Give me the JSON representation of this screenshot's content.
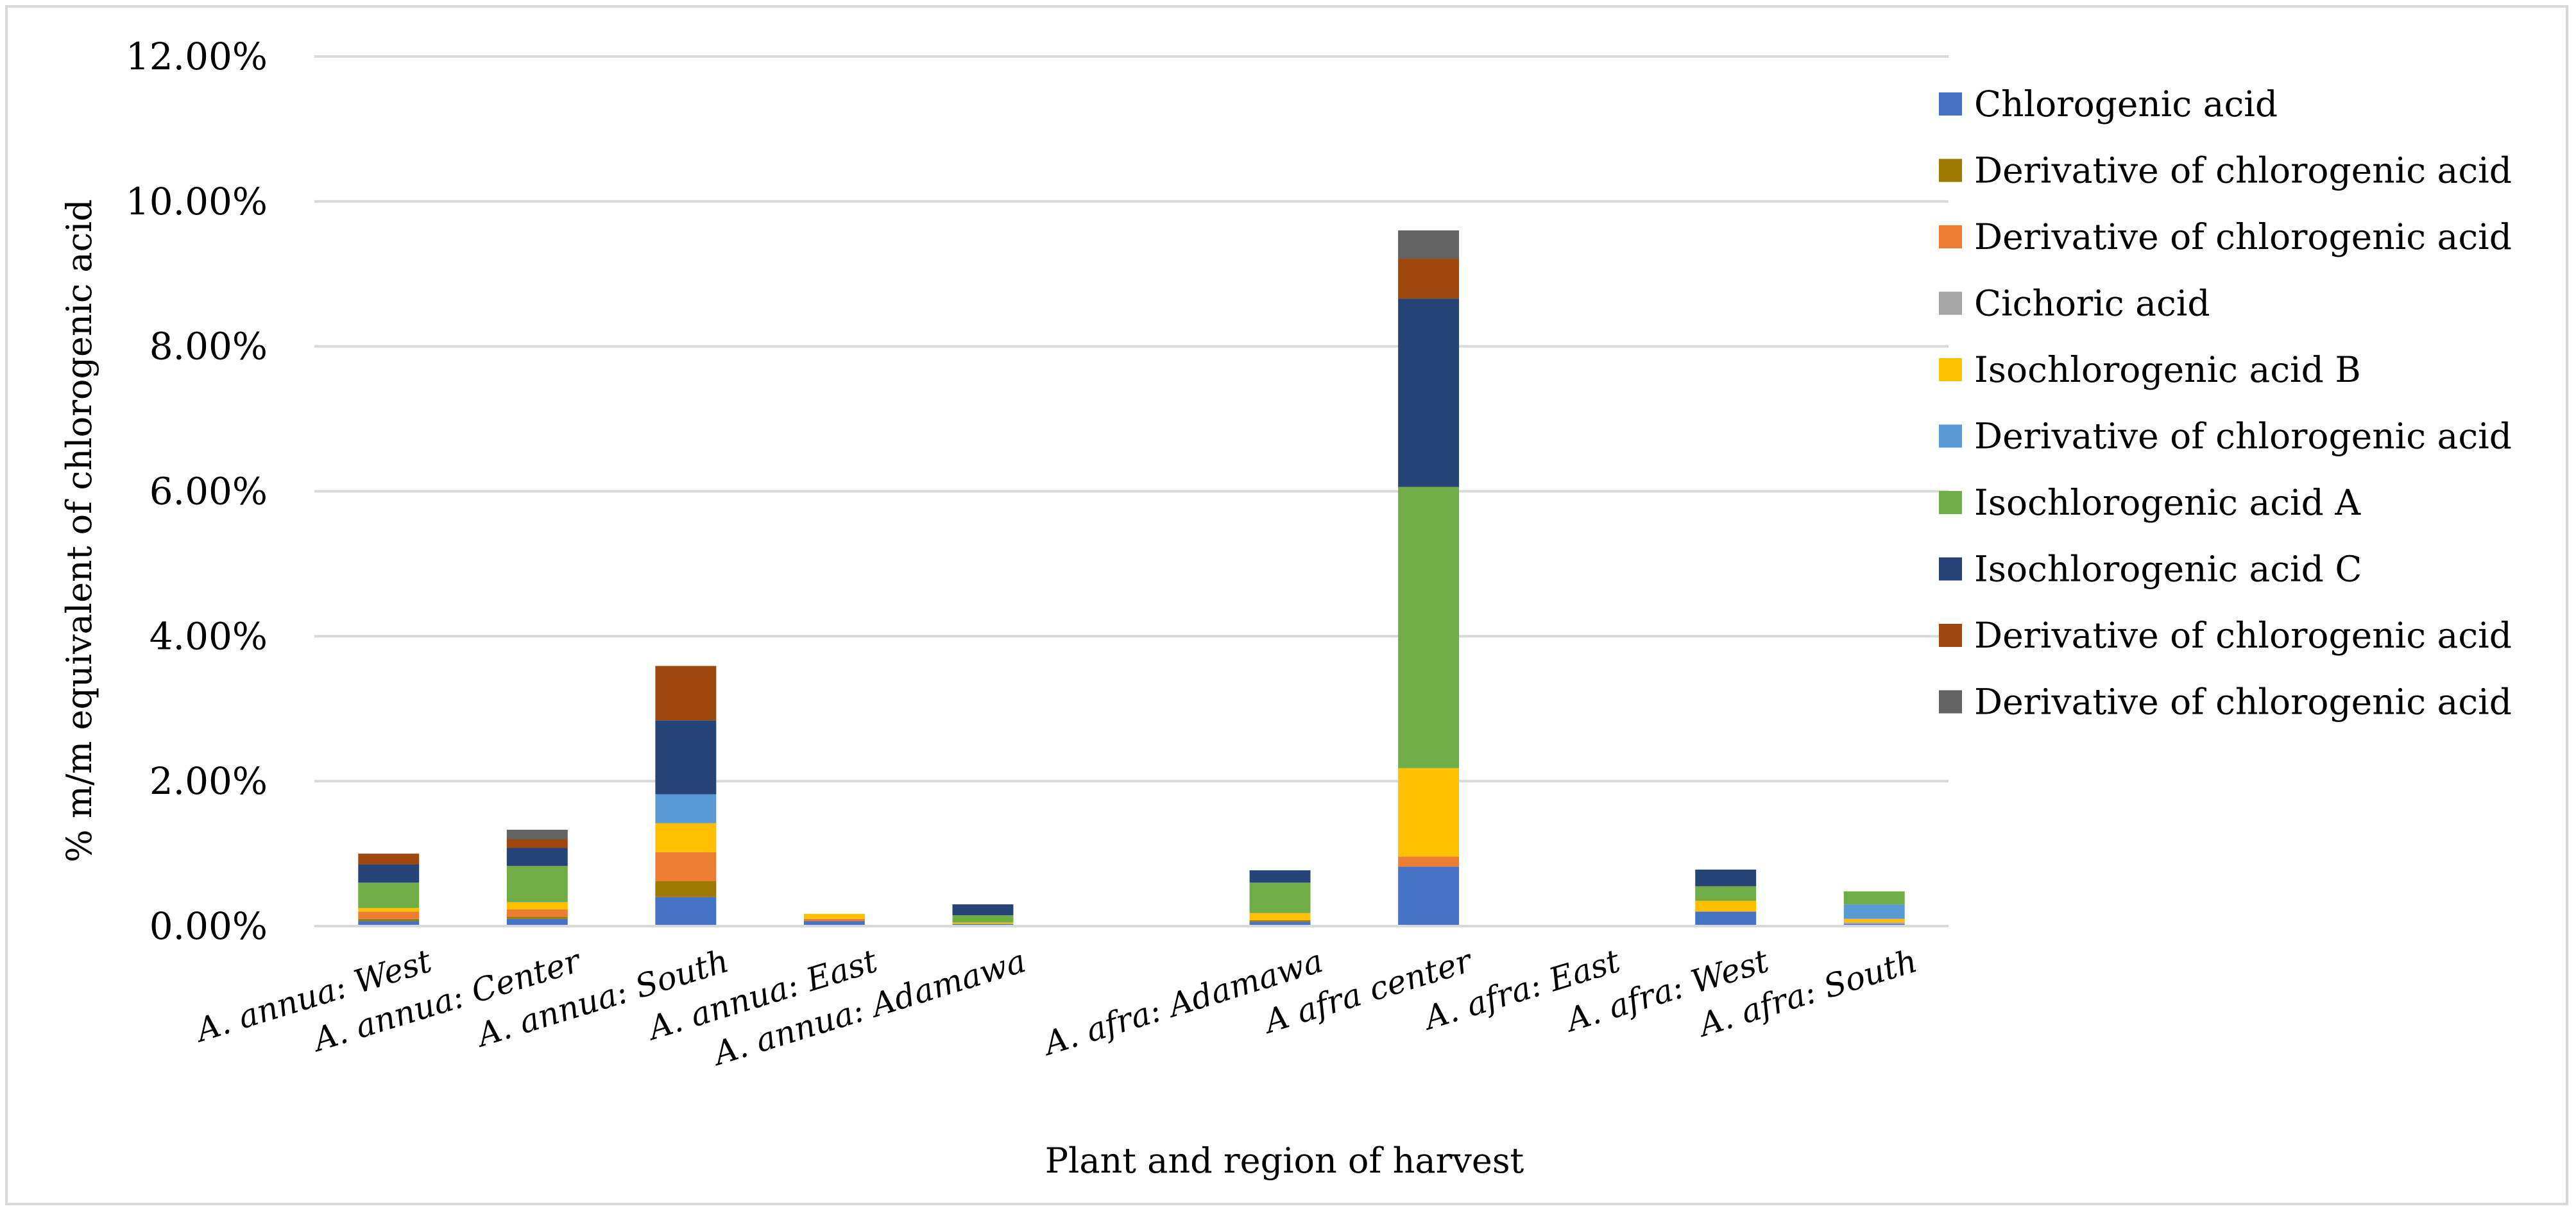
{
  "chart_data": {
    "type": "bar",
    "stacked": true,
    "title": "",
    "xlabel": "Plant and region of harvest",
    "ylabel": "% m/m equivalent of chlorogenic acid",
    "ylim": [
      0,
      0.12
    ],
    "yticks": [
      0,
      0.02,
      0.04,
      0.06,
      0.08,
      0.1,
      0.12
    ],
    "ytick_labels": [
      "0.00%",
      "2.00%",
      "4.00%",
      "6.00%",
      "8.00%",
      "10.00%",
      "12.00%"
    ],
    "grid": true,
    "legend_position": "right",
    "categories": [
      "A. annua: West",
      "A. annua: Center",
      "A. annua: South",
      "A. annua: East",
      "A. annua: Adamawa",
      "",
      "A. afra:  Adamawa",
      "A afra center",
      "A. afra: East",
      "A. afra: West",
      "A. afra: South"
    ],
    "series": [
      {
        "name": "Chlorogenic acid",
        "color": "#4472C4",
        "values": [
          0.0007,
          0.001,
          0.004,
          0.0007,
          0.0003,
          0,
          0.0006,
          0.0082,
          0,
          0.002,
          0.0003
        ]
      },
      {
        "name": "Derivative of chlorogenic acid",
        "color": "#9E7800",
        "values": [
          0.0003,
          0.0003,
          0.0022,
          0,
          0,
          0,
          0.0002,
          0,
          0,
          0,
          0
        ]
      },
      {
        "name": "Derivative of chlorogenic acid",
        "color": "#ED7D31",
        "values": [
          0.001,
          0.001,
          0.004,
          0.0003,
          0,
          0,
          0,
          0.0014,
          0,
          0,
          0
        ]
      },
      {
        "name": "Cichoric acid",
        "color": "#A5A5A5",
        "values": [
          0,
          0,
          0,
          0,
          0,
          0,
          0,
          0,
          0,
          0,
          0.0002
        ]
      },
      {
        "name": "Isochlorogenic acid B",
        "color": "#FFC000",
        "values": [
          0.0005,
          0.001,
          0.004,
          0.0007,
          0.0002,
          0,
          0.001,
          0.0122,
          0,
          0.0015,
          0.0005
        ]
      },
      {
        "name": "Derivative of chlorogenic acid",
        "color": "#5B9BD5",
        "values": [
          0,
          0,
          0.004,
          0,
          0,
          0,
          0,
          0,
          0,
          0,
          0.002
        ]
      },
      {
        "name": "Isochlorogenic acid A",
        "color": "#70AD47",
        "values": [
          0.0035,
          0.005,
          0,
          0,
          0.001,
          0,
          0.0042,
          0.0388,
          0,
          0.002,
          0.0018
        ]
      },
      {
        "name": "Isochlorogenic acid C",
        "color": "#264478",
        "values": [
          0.0025,
          0.0025,
          0.0102,
          0,
          0.0015,
          0,
          0.0017,
          0.026,
          0,
          0.0023,
          0
        ]
      },
      {
        "name": "Derivative of chlorogenic acid",
        "color": "#9E480E",
        "values": [
          0.0015,
          0.0012,
          0.0075,
          0,
          0,
          0,
          0,
          0.0055,
          0,
          0,
          0
        ]
      },
      {
        "name": "Derivative of chlorogenic acid",
        "color": "#636363",
        "values": [
          0,
          0.0013,
          0,
          0,
          0,
          0,
          0,
          0.0039,
          0,
          0,
          0
        ]
      }
    ]
  }
}
